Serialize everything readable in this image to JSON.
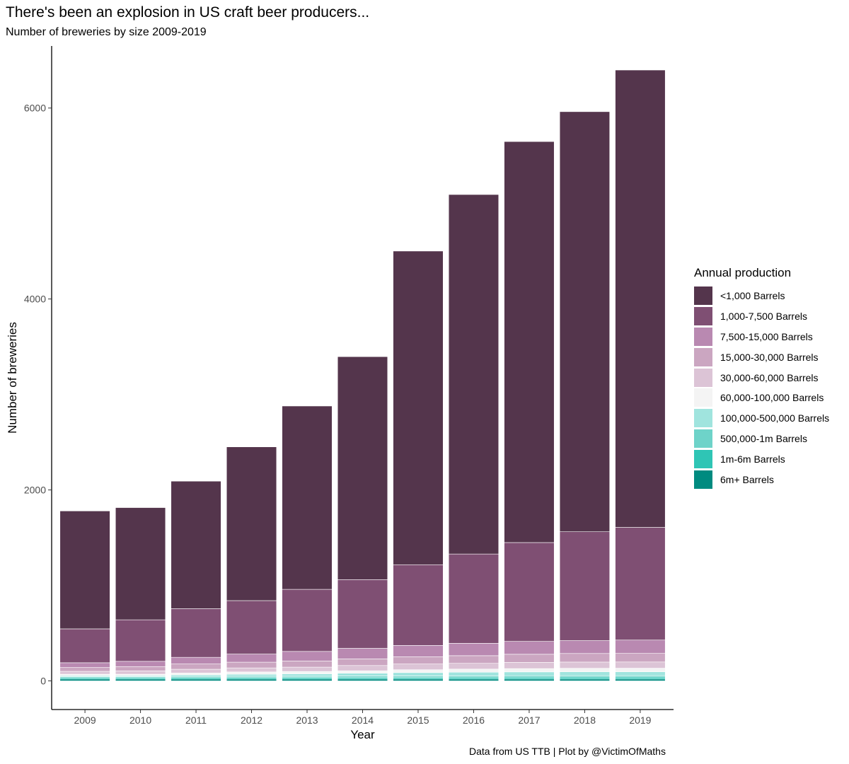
{
  "title": "There's been an explosion in US craft beer producers...",
  "subtitle": "Number of breweries by size 2009-2019",
  "caption": "Data from US TTB | Plot by @VictimOfMaths",
  "legend_title": "Annual production",
  "chart_data": {
    "type": "bar",
    "stacked": true,
    "xlabel": "Year",
    "ylabel": "Number of breweries",
    "ylim": [
      -300,
      6650
    ],
    "yticks": [
      0,
      2000,
      4000,
      6000
    ],
    "grid": false,
    "legend_position": "right",
    "categories": [
      "2009",
      "2010",
      "2011",
      "2012",
      "2013",
      "2014",
      "2015",
      "2016",
      "2017",
      "2018",
      "2019"
    ],
    "series": [
      {
        "name": "6m+ Barrels",
        "color": "#008b80",
        "values": [
          20,
          20,
          20,
          20,
          20,
          20,
          20,
          20,
          20,
          20,
          20
        ]
      },
      {
        "name": "1m-6m Barrels",
        "color": "#2fc5b5",
        "values": [
          15,
          15,
          16,
          17,
          17,
          18,
          18,
          19,
          19,
          20,
          20
        ]
      },
      {
        "name": "500,000-1m Barrels",
        "color": "#6ed3c9",
        "values": [
          10,
          10,
          11,
          12,
          12,
          13,
          14,
          14,
          15,
          15,
          15
        ]
      },
      {
        "name": "100,000-500,000 Barrels",
        "color": "#a0e4de",
        "values": [
          10,
          10,
          15,
          20,
          25,
          30,
          35,
          38,
          40,
          40,
          40
        ]
      },
      {
        "name": "60,000-100,000 Barrels",
        "color": "#f4f4f4",
        "values": [
          15,
          15,
          20,
          25,
          25,
          25,
          30,
          33,
          35,
          37,
          38
        ]
      },
      {
        "name": "30,000-60,000 Barrels",
        "color": "#dcc4d6",
        "values": [
          30,
          35,
          40,
          42,
          45,
          55,
          60,
          60,
          65,
          65,
          65
        ]
      },
      {
        "name": "15,000-30,000 Barrels",
        "color": "#cba6c1",
        "values": [
          40,
          45,
          55,
          60,
          65,
          70,
          75,
          80,
          85,
          90,
          90
        ]
      },
      {
        "name": "7,500-15,000 Barrels",
        "color": "#b989b1",
        "values": [
          50,
          55,
          70,
          85,
          100,
          110,
          120,
          130,
          135,
          135,
          140
        ]
      },
      {
        "name": "1,000-7,500 Barrels",
        "color": "#7f4f73",
        "values": [
          355,
          435,
          510,
          560,
          650,
          720,
          845,
          935,
          1035,
          1140,
          1180
        ]
      },
      {
        "name": "<1,000 Barrels",
        "color": "#54354c",
        "values": [
          1235,
          1175,
          1335,
          1610,
          1920,
          2335,
          3285,
          3765,
          4200,
          4400,
          4790
        ]
      }
    ]
  }
}
